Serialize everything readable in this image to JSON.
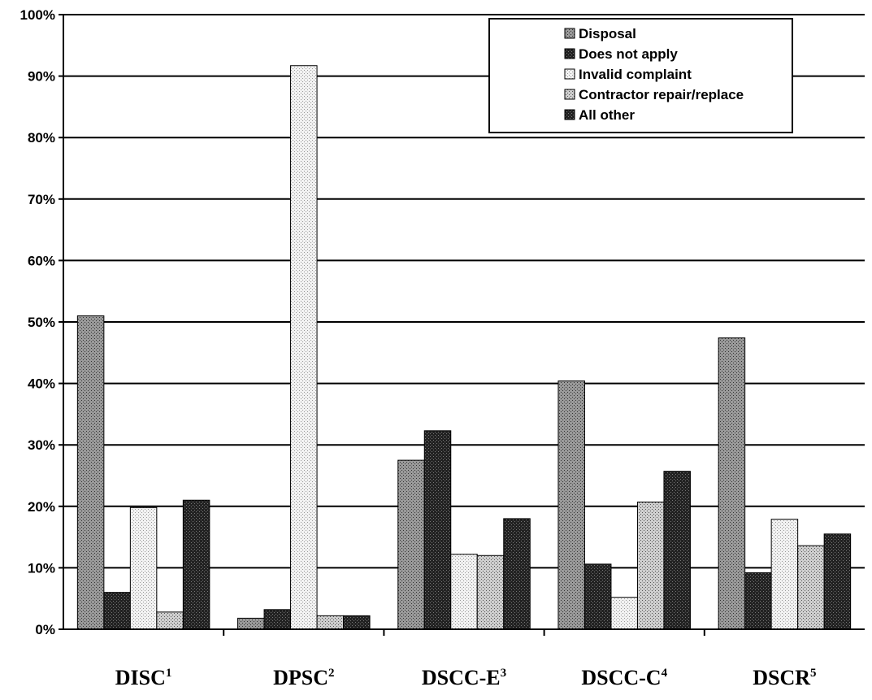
{
  "chart_data": {
    "type": "bar",
    "categories": [
      "DISC",
      "DPSC",
      "DSCC-E",
      "DSCC-C",
      "DSCR"
    ],
    "category_superscripts": [
      "1",
      "2",
      "3",
      "4",
      "5"
    ],
    "series": [
      {
        "name": "Disposal",
        "color": "#7a7a7a",
        "pattern": "medium",
        "values": [
          51,
          1.8,
          27.5,
          40.4,
          47.4
        ]
      },
      {
        "name": "Does not apply",
        "color": "#2b2b2b",
        "pattern": "dark",
        "values": [
          6,
          3.2,
          32.3,
          10.6,
          9.2
        ]
      },
      {
        "name": "Invalid complaint",
        "color": "#e6e6e6",
        "pattern": "light",
        "values": [
          19.8,
          91.7,
          12.2,
          5.2,
          17.9
        ]
      },
      {
        "name": "Contractor repair/replace",
        "color": "#bdbdbd",
        "pattern": "medium-light",
        "values": [
          2.8,
          2.2,
          12,
          20.7,
          13.6
        ]
      },
      {
        "name": "All other",
        "color": "#3a3a3a",
        "pattern": "dark",
        "values": [
          21,
          2.2,
          18,
          25.7,
          15.5
        ]
      }
    ],
    "ylim": [
      0,
      100
    ],
    "yticks": [
      "0%",
      "10%",
      "20%",
      "30%",
      "40%",
      "50%",
      "60%",
      "70%",
      "80%",
      "90%",
      "100%"
    ],
    "grid": true,
    "legend_position": "top-right"
  }
}
